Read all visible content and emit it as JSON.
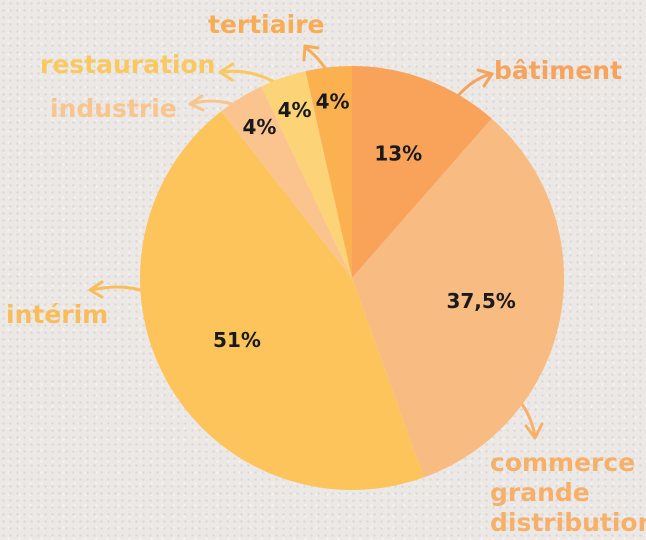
{
  "chart_data": {
    "type": "pie",
    "categories": [
      "bâtiment",
      "commerce grande distribution",
      "intérim",
      "industrie",
      "restauration",
      "tertiaire"
    ],
    "values": [
      13,
      37.5,
      51,
      4,
      4,
      4
    ],
    "value_labels": [
      "13%",
      "37,5%",
      "51%",
      "4%",
      "4%",
      "4%"
    ],
    "colors": [
      "#f9a35a",
      "#f8bb82",
      "#fec45c",
      "#fbc48f",
      "#fdd378",
      "#fbb150"
    ]
  }
}
